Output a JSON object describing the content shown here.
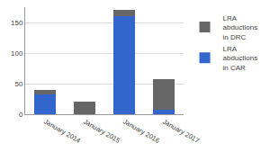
{
  "chart_data": {
    "type": "bar",
    "stacked": true,
    "categories": [
      "January 2014",
      "January 2015",
      "January 2016",
      "January 2017"
    ],
    "series": [
      {
        "name": "LRA abductions in CAR",
        "color": "#3366cc",
        "values": [
          32,
          0,
          160,
          8
        ]
      },
      {
        "name": "LRA abductions in DRC",
        "color": "#666666",
        "values": [
          8,
          20,
          10,
          50
        ]
      }
    ],
    "ylim": [
      0,
      175
    ],
    "yticks": [
      0,
      50,
      100,
      150
    ],
    "grid": true,
    "legend": "right"
  }
}
